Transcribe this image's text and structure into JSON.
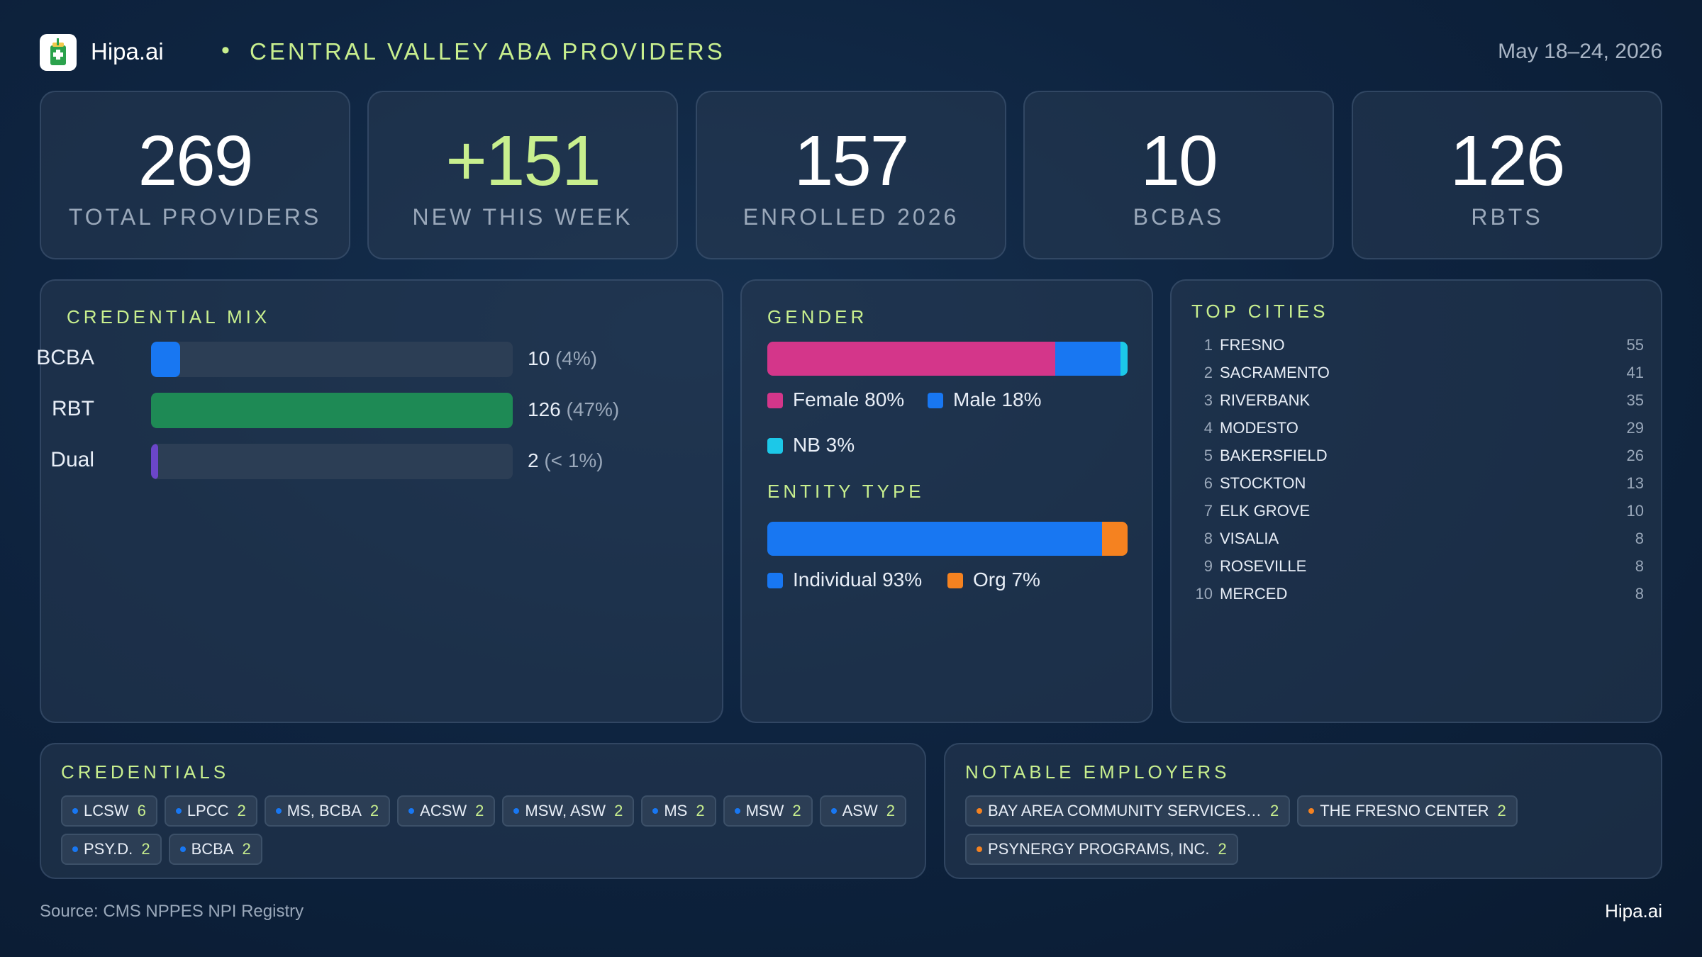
{
  "header": {
    "brand": "Hipa.ai",
    "separator": "•",
    "title": "CENTRAL VALLEY ABA PROVIDERS",
    "date_range": "May 18–24, 2026"
  },
  "kpis": [
    {
      "value": "269",
      "label": "TOTAL PROVIDERS"
    },
    {
      "value": "+151",
      "label": "NEW THIS WEEK"
    },
    {
      "value": "157",
      "label": "ENROLLED 2026"
    },
    {
      "value": "10",
      "label": "BCBAS"
    },
    {
      "value": "126",
      "label": "RBTS"
    }
  ],
  "credential_mix": {
    "title": "CREDENTIAL MIX",
    "rows": [
      {
        "label": "BCBA",
        "count": "10",
        "pct": "(4%)",
        "fraction": 0.08,
        "color": "#1877f2"
      },
      {
        "label": "RBT",
        "count": "126",
        "pct": "(47%)",
        "fraction": 1.0,
        "color": "#1e8a55"
      },
      {
        "label": "Dual",
        "count": "2",
        "pct": "(< 1%)",
        "fraction": 0.02,
        "color": "#6b46c9"
      }
    ]
  },
  "gender": {
    "title": "GENDER",
    "segments": [
      {
        "label": "Female 80%",
        "fraction": 0.8,
        "color": "#d4368a"
      },
      {
        "label": "Male 18%",
        "fraction": 0.18,
        "color": "#1877f2"
      },
      {
        "label": "NB 3%",
        "fraction": 0.02,
        "color": "#1cc8e8"
      }
    ]
  },
  "entity_type": {
    "title": "ENTITY TYPE",
    "segments": [
      {
        "label": "Individual 93%",
        "fraction": 0.93,
        "color": "#1877f2"
      },
      {
        "label": "Org 7%",
        "fraction": 0.07,
        "color": "#f58220"
      }
    ]
  },
  "top_cities": {
    "title": "TOP CITIES",
    "rows": [
      {
        "rank": "1",
        "name": "FRESNO",
        "count": "55"
      },
      {
        "rank": "2",
        "name": "SACRAMENTO",
        "count": "41"
      },
      {
        "rank": "3",
        "name": "RIVERBANK",
        "count": "35"
      },
      {
        "rank": "4",
        "name": "MODESTO",
        "count": "29"
      },
      {
        "rank": "5",
        "name": "BAKERSFIELD",
        "count": "26"
      },
      {
        "rank": "6",
        "name": "STOCKTON",
        "count": "13"
      },
      {
        "rank": "7",
        "name": "ELK GROVE",
        "count": "10"
      },
      {
        "rank": "8",
        "name": "VISALIA",
        "count": "8"
      },
      {
        "rank": "9",
        "name": "ROSEVILLE",
        "count": "8"
      },
      {
        "rank": "10",
        "name": "MERCED",
        "count": "8"
      }
    ]
  },
  "credentials": {
    "title": "CREDENTIALS",
    "dot_color": "#1877f2",
    "chips": [
      {
        "label": "LCSW",
        "count": "6"
      },
      {
        "label": "LPCC",
        "count": "2"
      },
      {
        "label": "MS, BCBA",
        "count": "2"
      },
      {
        "label": "ACSW",
        "count": "2"
      },
      {
        "label": "MSW, ASW",
        "count": "2"
      },
      {
        "label": "MS",
        "count": "2"
      },
      {
        "label": "MSW",
        "count": "2"
      },
      {
        "label": "ASW",
        "count": "2"
      },
      {
        "label": "PSY.D.",
        "count": "2"
      },
      {
        "label": "BCBA",
        "count": "2"
      }
    ]
  },
  "employers": {
    "title": "NOTABLE EMPLOYERS",
    "dot_color": "#f58220",
    "chips": [
      {
        "label": "BAY AREA COMMUNITY SERVICES…",
        "count": "2"
      },
      {
        "label": "THE FRESNO CENTER",
        "count": "2"
      },
      {
        "label": "PSYNERGY PROGRAMS, INC.",
        "count": "2"
      }
    ]
  },
  "footer": {
    "source": "Source: CMS NPPES NPI Registry",
    "brand": "Hipa.ai"
  }
}
